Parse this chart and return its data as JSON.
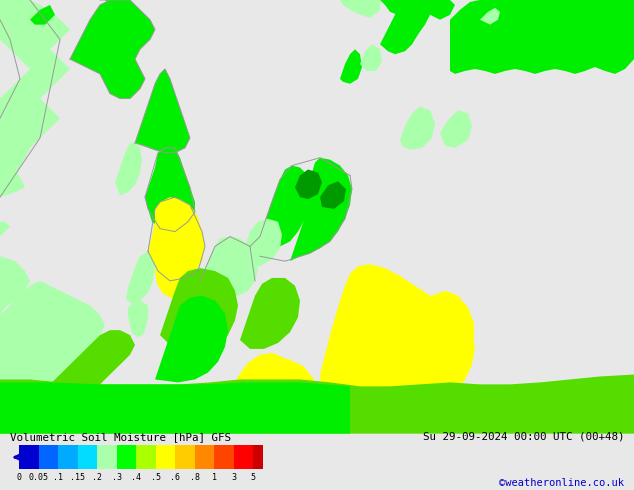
{
  "title_left": "Volumetric Soil Moisture [hPa] GFS",
  "title_right": "Su 29-09-2024 00:00 UTC (00+48)",
  "credit": "©weatheronline.co.uk",
  "colorbar_tick_labels": [
    "0",
    "0.05",
    ".1",
    ".15",
    ".2",
    ".3",
    ".4",
    ".5",
    ".6",
    ".8",
    "1",
    "3",
    "5"
  ],
  "colorbar_colors": [
    "#0000d0",
    "#0066ff",
    "#00aaff",
    "#00ddff",
    "#aaffaa",
    "#00ff00",
    "#aaff00",
    "#ffff00",
    "#ffcc00",
    "#ff8800",
    "#ff4400",
    "#ff0000",
    "#cc0000"
  ],
  "sea_color": "#e8e8e8",
  "bg_color": "#e8e8e8",
  "boundary_color": "#aaaaaa",
  "fig_width": 6.34,
  "fig_height": 4.9,
  "dpi": 100,
  "map_colors": {
    "bright_green": "#00ee00",
    "light_green": "#aaffaa",
    "yellow": "#ffff00",
    "dark_green": "#009900",
    "mid_green": "#44dd00"
  }
}
